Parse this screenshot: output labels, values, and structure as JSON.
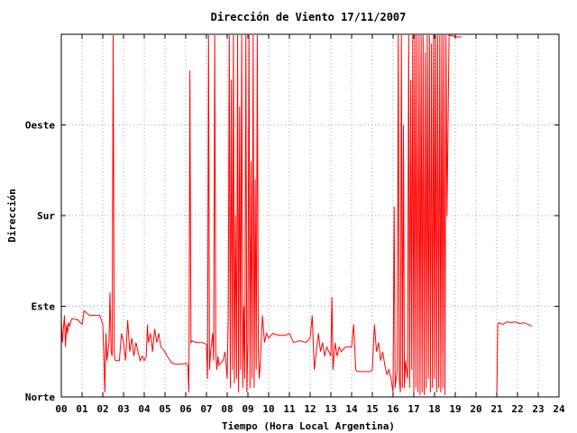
{
  "chart_data": {
    "type": "line",
    "title": "Dirección de Viento 17/11/2007",
    "xlabel": "Tiempo (Hora Local Argentina)",
    "ylabel": "Dirección",
    "xlim": [
      0,
      24
    ],
    "ylim": [
      0,
      4
    ],
    "x_tick_labels": [
      "00",
      "01",
      "02",
      "03",
      "04",
      "05",
      "06",
      "07",
      "08",
      "09",
      "10",
      "11",
      "12",
      "13",
      "14",
      "15",
      "16",
      "17",
      "18",
      "19",
      "20",
      "21",
      "22",
      "23",
      "24"
    ],
    "y_ticks": [
      {
        "value": 0,
        "label": "Norte"
      },
      {
        "value": 1,
        "label": "Este"
      },
      {
        "value": 2,
        "label": "Sur"
      },
      {
        "value": 3,
        "label": "Oeste"
      }
    ],
    "grid": true,
    "line_color": "#ff0000",
    "series": [
      {
        "values_xy": [
          [
            0.0,
            0.85
          ],
          [
            0.05,
            0.6
          ],
          [
            0.1,
            0.75
          ],
          [
            0.15,
            0.9
          ],
          [
            0.2,
            0.55
          ],
          [
            0.25,
            0.8
          ],
          [
            0.3,
            0.7
          ],
          [
            0.35,
            0.82
          ],
          [
            0.4,
            0.78
          ],
          [
            0.5,
            0.86
          ],
          [
            0.6,
            0.86
          ],
          [
            0.8,
            0.85
          ],
          [
            1.0,
            0.8
          ],
          [
            1.1,
            0.95
          ],
          [
            1.25,
            0.92
          ],
          [
            1.35,
            0.9
          ],
          [
            1.5,
            0.9
          ],
          [
            1.7,
            0.9
          ],
          [
            1.85,
            0.9
          ],
          [
            2.0,
            0.8
          ],
          [
            2.05,
            0.5
          ],
          [
            2.1,
            0.05
          ],
          [
            2.15,
            0.7
          ],
          [
            2.2,
            0.4
          ],
          [
            2.3,
            0.6
          ],
          [
            2.35,
            1.15
          ],
          [
            2.4,
            0.5
          ],
          [
            2.45,
            0.45
          ],
          [
            2.5,
            3.99
          ],
          [
            2.55,
            0.5
          ],
          [
            2.6,
            0.4
          ],
          [
            2.8,
            0.4
          ],
          [
            2.9,
            0.7
          ],
          [
            3.0,
            0.6
          ],
          [
            3.1,
            0.4
          ],
          [
            3.2,
            0.85
          ],
          [
            3.3,
            0.5
          ],
          [
            3.4,
            0.65
          ],
          [
            3.5,
            0.45
          ],
          [
            3.6,
            0.6
          ],
          [
            3.7,
            0.5
          ],
          [
            3.8,
            0.4
          ],
          [
            3.9,
            0.45
          ],
          [
            4.0,
            0.4
          ],
          [
            4.1,
            0.45
          ],
          [
            4.15,
            0.8
          ],
          [
            4.2,
            0.6
          ],
          [
            4.3,
            0.7
          ],
          [
            4.4,
            0.5
          ],
          [
            4.5,
            0.75
          ],
          [
            4.6,
            0.6
          ],
          [
            4.7,
            0.7
          ],
          [
            4.8,
            0.55
          ],
          [
            5.0,
            0.5
          ],
          [
            5.1,
            0.45
          ],
          [
            5.2,
            0.42
          ],
          [
            5.3,
            0.38
          ],
          [
            5.5,
            0.36
          ],
          [
            5.8,
            0.36
          ],
          [
            6.0,
            0.37
          ],
          [
            6.1,
            0.35
          ],
          [
            6.15,
            0.05
          ],
          [
            6.2,
            3.6
          ],
          [
            6.25,
            0.6
          ],
          [
            6.3,
            0.62
          ],
          [
            6.5,
            0.6
          ],
          [
            6.8,
            0.6
          ],
          [
            7.0,
            0.58
          ],
          [
            7.05,
            0.2
          ],
          [
            7.1,
            3.99
          ],
          [
            7.15,
            0.3
          ],
          [
            7.2,
            0.5
          ],
          [
            7.3,
            0.7
          ],
          [
            7.35,
            0.4
          ],
          [
            7.4,
            3.99
          ],
          [
            7.45,
            0.5
          ],
          [
            7.5,
            0.3
          ],
          [
            7.55,
            0.45
          ],
          [
            7.6,
            0.35
          ],
          [
            7.8,
            0.4
          ],
          [
            7.9,
            0.5
          ],
          [
            8.0,
            0.2
          ],
          [
            8.05,
            0.9
          ],
          [
            8.1,
            3.99
          ],
          [
            8.15,
            0.1
          ],
          [
            8.2,
            3.5
          ],
          [
            8.25,
            0.3
          ],
          [
            8.3,
            3.99
          ],
          [
            8.35,
            0.15
          ],
          [
            8.4,
            2.0
          ],
          [
            8.45,
            0.2
          ],
          [
            8.5,
            3.99
          ],
          [
            8.55,
            0.05
          ],
          [
            8.6,
            3.2
          ],
          [
            8.65,
            0.3
          ],
          [
            8.7,
            3.99
          ],
          [
            8.75,
            0.1
          ],
          [
            8.8,
            1.0
          ],
          [
            8.85,
            0.2
          ],
          [
            8.9,
            3.99
          ],
          [
            8.95,
            0.05
          ],
          [
            9.0,
            0.6
          ],
          [
            9.05,
            3.99
          ],
          [
            9.1,
            0.1
          ],
          [
            9.15,
            2.6
          ],
          [
            9.2,
            0.2
          ],
          [
            9.25,
            3.99
          ],
          [
            9.3,
            0.1
          ],
          [
            9.35,
            2.4
          ],
          [
            9.4,
            0.3
          ],
          [
            9.45,
            3.99
          ],
          [
            9.5,
            0.5
          ],
          [
            9.55,
            0.2
          ],
          [
            9.6,
            0.4
          ],
          [
            9.7,
            0.9
          ],
          [
            9.8,
            0.6
          ],
          [
            9.9,
            0.7
          ],
          [
            10.0,
            0.65
          ],
          [
            10.2,
            0.7
          ],
          [
            10.5,
            0.68
          ],
          [
            10.8,
            0.68
          ],
          [
            11.0,
            0.7
          ],
          [
            11.2,
            0.6
          ],
          [
            11.5,
            0.62
          ],
          [
            11.8,
            0.6
          ],
          [
            12.0,
            0.65
          ],
          [
            12.1,
            0.9
          ],
          [
            12.2,
            0.3
          ],
          [
            12.3,
            0.5
          ],
          [
            12.4,
            0.7
          ],
          [
            12.5,
            0.5
          ],
          [
            12.6,
            0.6
          ],
          [
            12.7,
            0.45
          ],
          [
            12.8,
            0.55
          ],
          [
            12.9,
            0.5
          ],
          [
            13.0,
            0.45
          ],
          [
            13.05,
            1.1
          ],
          [
            13.1,
            0.3
          ],
          [
            13.2,
            0.6
          ],
          [
            13.3,
            0.45
          ],
          [
            13.4,
            0.55
          ],
          [
            13.5,
            0.5
          ],
          [
            13.7,
            0.55
          ],
          [
            14.0,
            0.55
          ],
          [
            14.1,
            0.8
          ],
          [
            14.2,
            0.3
          ],
          [
            14.3,
            0.28
          ],
          [
            14.6,
            0.28
          ],
          [
            14.9,
            0.28
          ],
          [
            15.0,
            0.3
          ],
          [
            15.1,
            0.8
          ],
          [
            15.2,
            0.5
          ],
          [
            15.3,
            0.6
          ],
          [
            15.4,
            0.4
          ],
          [
            15.5,
            0.5
          ],
          [
            15.6,
            0.35
          ],
          [
            15.7,
            0.25
          ],
          [
            15.8,
            0.3
          ],
          [
            15.9,
            0.2
          ],
          [
            16.0,
            0.05
          ],
          [
            16.05,
            2.1
          ],
          [
            16.1,
            0.1
          ],
          [
            16.2,
            0.3
          ],
          [
            16.25,
            3.99
          ],
          [
            16.3,
            0.2
          ],
          [
            16.35,
            0.05
          ],
          [
            16.4,
            3.99
          ],
          [
            16.45,
            0.1
          ],
          [
            16.5,
            3.0
          ],
          [
            16.55,
            0.1
          ],
          [
            16.6,
            0.4
          ],
          [
            16.7,
            0.2
          ],
          [
            16.75,
            3.99
          ],
          [
            16.8,
            0.1
          ],
          [
            16.85,
            3.5
          ],
          [
            16.9,
            0.3
          ],
          [
            16.95,
            3.99
          ],
          [
            17.0,
            0.05
          ],
          [
            17.05,
            3.99
          ],
          [
            17.1,
            0.1
          ],
          [
            17.15,
            3.99
          ],
          [
            17.2,
            0.05
          ],
          [
            17.25,
            3.99
          ],
          [
            17.3,
            0.02
          ],
          [
            17.35,
            3.99
          ],
          [
            17.4,
            0.05
          ],
          [
            17.45,
            3.99
          ],
          [
            17.5,
            0.02
          ],
          [
            17.55,
            3.8
          ],
          [
            17.6,
            0.1
          ],
          [
            17.65,
            3.99
          ],
          [
            17.7,
            0.2
          ],
          [
            17.75,
            3.99
          ],
          [
            17.8,
            0.05
          ],
          [
            17.85,
            3.9
          ],
          [
            17.9,
            0.1
          ],
          [
            17.95,
            3.99
          ],
          [
            18.0,
            0.2
          ],
          [
            18.05,
            3.99
          ],
          [
            18.1,
            0.05
          ],
          [
            18.15,
            3.99
          ],
          [
            18.2,
            0.1
          ],
          [
            18.25,
            3.99
          ],
          [
            18.3,
            0.05
          ],
          [
            18.35,
            3.99
          ],
          [
            18.4,
            0.1
          ],
          [
            18.45,
            3.99
          ],
          [
            18.5,
            0.02
          ],
          [
            18.55,
            3.99
          ],
          [
            18.6,
            2.0
          ],
          [
            18.7,
            3.99
          ],
          [
            18.9,
            3.98
          ],
          [
            19.1,
            3.97
          ],
          [
            19.3,
            3.97
          ]
        ]
      },
      {
        "values_xy": [
          [
            21.0,
            0.0
          ],
          [
            21.05,
            0.8
          ],
          [
            21.1,
            0.82
          ],
          [
            21.3,
            0.8
          ],
          [
            21.5,
            0.83
          ],
          [
            21.7,
            0.82
          ],
          [
            21.9,
            0.83
          ],
          [
            22.1,
            0.81
          ],
          [
            22.3,
            0.82
          ],
          [
            22.5,
            0.8
          ],
          [
            22.7,
            0.78
          ]
        ]
      }
    ]
  }
}
